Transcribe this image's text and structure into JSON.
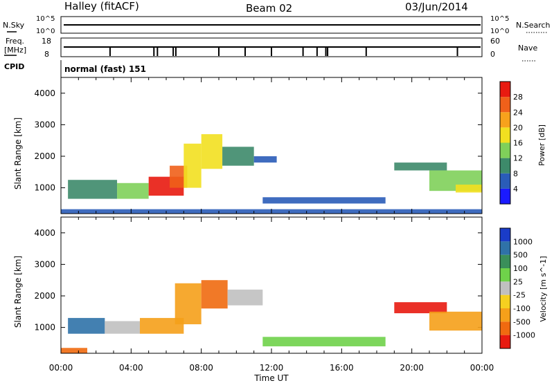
{
  "header": {
    "station": "Halley (fitACF)",
    "beam": "Beam 02",
    "date": "03/Jun/2014"
  },
  "strips": {
    "nsky_label": "N.Sky",
    "nsky_top": "10^5",
    "nsky_bottom": "10^0",
    "nsearch_label": "N.Search",
    "nsearch_top": "10^5",
    "nsearch_bottom": "10^0",
    "freq_label1": "Freq.",
    "freq_label2": "[MHz]",
    "freq_top": "18",
    "freq_bottom": "8",
    "nave_label": "Nave",
    "nave_top": "60",
    "nave_bottom": "0",
    "cpid_label": "CPID",
    "cpid_value": "normal (fast) 151"
  },
  "chart_data": [
    {
      "type": "heatmap",
      "panel": "power",
      "ylabel": "Slant Range [km]",
      "xlabel": "",
      "ylim": [
        180,
        4500
      ],
      "yticks": [
        "1000",
        "2000",
        "3000",
        "4000"
      ],
      "xticks": [
        "00:00",
        "04:00",
        "08:00",
        "12:00",
        "16:00",
        "20:00",
        "00:00"
      ],
      "colorbar": {
        "label": "Power [dB]",
        "ticks": [
          "4",
          "8",
          "12",
          "16",
          "20",
          "24",
          "28"
        ],
        "colors": [
          "#1a1aff",
          "#2a5cb8",
          "#3d8a6a",
          "#7fd05a",
          "#f2e020",
          "#f7a21c",
          "#f0601a",
          "#e81a10"
        ]
      },
      "regions": [
        {
          "t0": 0.0,
          "t1": 24.0,
          "r0": 180,
          "r1": 320,
          "level": 1
        },
        {
          "t0": 0.4,
          "t1": 3.2,
          "r0": 650,
          "r1": 1250,
          "level": 2
        },
        {
          "t0": 3.2,
          "t1": 5.0,
          "r0": 650,
          "r1": 1150,
          "level": 3
        },
        {
          "t0": 5.0,
          "t1": 7.0,
          "r0": 750,
          "r1": 1350,
          "level": 7
        },
        {
          "t0": 6.2,
          "t1": 7.2,
          "r0": 1000,
          "r1": 1700,
          "level": 6
        },
        {
          "t0": 7.0,
          "t1": 8.0,
          "r0": 1000,
          "r1": 2400,
          "level": 4
        },
        {
          "t0": 8.0,
          "t1": 9.2,
          "r0": 1600,
          "r1": 2700,
          "level": 4
        },
        {
          "t0": 9.2,
          "t1": 11.0,
          "r0": 1700,
          "r1": 2300,
          "level": 2
        },
        {
          "t0": 11.0,
          "t1": 12.3,
          "r0": 1800,
          "r1": 2000,
          "level": 1
        },
        {
          "t0": 11.5,
          "t1": 18.5,
          "r0": 500,
          "r1": 700,
          "level": 1
        },
        {
          "t0": 19.0,
          "t1": 22.0,
          "r0": 1550,
          "r1": 1800,
          "level": 2
        },
        {
          "t0": 21.0,
          "t1": 24.0,
          "r0": 900,
          "r1": 1550,
          "level": 3
        },
        {
          "t0": 22.5,
          "t1": 24.0,
          "r0": 850,
          "r1": 1100,
          "level": 4
        }
      ]
    },
    {
      "type": "heatmap",
      "panel": "velocity",
      "ylabel": "Slant Range [km]",
      "xlabel": "Time UT",
      "ylim": [
        180,
        4500
      ],
      "yticks": [
        "1000",
        "2000",
        "3000",
        "4000"
      ],
      "xticks": [
        "00:00",
        "04:00",
        "08:00",
        "12:00",
        "16:00",
        "20:00",
        "00:00"
      ],
      "colorbar": {
        "label": "Velocity [m s^-1]",
        "ticks": [
          "1000",
          "500",
          "100",
          "25",
          "-25",
          "-100",
          "-500",
          "-1000"
        ],
        "colors": [
          "#1a3cc8",
          "#2f72a8",
          "#3a8f5a",
          "#6fd24a",
          "#c0c0c0",
          "#f5d020",
          "#f5a01a",
          "#f06a10",
          "#e81a10"
        ]
      },
      "regions": [
        {
          "t0": 0.0,
          "t1": 1.5,
          "r0": 180,
          "r1": 350,
          "level": 7
        },
        {
          "t0": 0.4,
          "t1": 2.5,
          "r0": 800,
          "r1": 1300,
          "level": 1
        },
        {
          "t0": 2.5,
          "t1": 4.5,
          "r0": 800,
          "r1": 1200,
          "level": 4
        },
        {
          "t0": 4.5,
          "t1": 7.0,
          "r0": 800,
          "r1": 1300,
          "level": 6
        },
        {
          "t0": 6.5,
          "t1": 8.0,
          "r0": 1100,
          "r1": 2400,
          "level": 6
        },
        {
          "t0": 8.0,
          "t1": 9.5,
          "r0": 1600,
          "r1": 2500,
          "level": 7
        },
        {
          "t0": 9.5,
          "t1": 11.5,
          "r0": 1700,
          "r1": 2200,
          "level": 4
        },
        {
          "t0": 11.5,
          "t1": 18.5,
          "r0": 400,
          "r1": 700,
          "level": 3
        },
        {
          "t0": 19.0,
          "t1": 22.0,
          "r0": 1450,
          "r1": 1800,
          "level": 8
        },
        {
          "t0": 21.0,
          "t1": 24.0,
          "r0": 900,
          "r1": 1500,
          "level": 6
        }
      ]
    }
  ]
}
